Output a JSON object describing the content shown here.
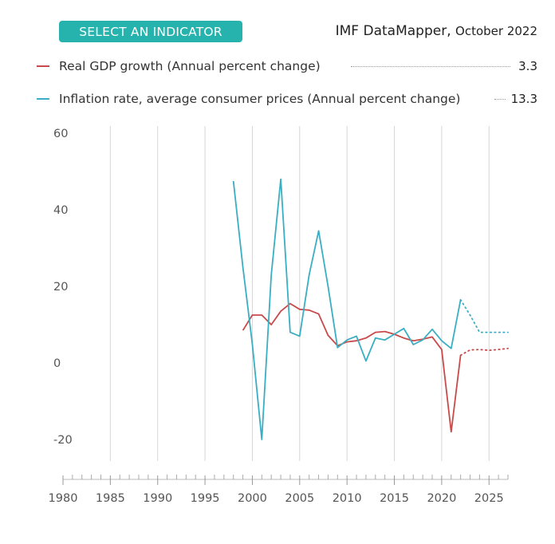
{
  "header": {
    "select_label": "SELECT AN INDICATOR",
    "source_name": "IMF DataMapper,",
    "source_date": "October 2022"
  },
  "legend": [
    {
      "label": "Real GDP growth (Annual percent change)",
      "value": "3.3",
      "color": "#c94a4a"
    },
    {
      "label": "Inflation rate, average consumer prices (Annual percent change)",
      "value": "13.3",
      "color": "#3aaec2"
    }
  ],
  "chart_data": {
    "type": "line",
    "title": "",
    "xlabel": "",
    "ylabel": "",
    "xlim": [
      1980,
      2027
    ],
    "ylim": [
      -20,
      60
    ],
    "x_ticks": [
      1980,
      1985,
      1990,
      1995,
      2000,
      2005,
      2010,
      2015,
      2020,
      2025
    ],
    "y_ticks": [
      -20,
      0,
      20,
      40,
      60
    ],
    "x_tick_labels": [
      "1980",
      "1985",
      "1990",
      "1995",
      "2000",
      "2005",
      "2010",
      "2015",
      "2020",
      "2025"
    ],
    "y_tick_labels": [
      "-20",
      "0",
      "20",
      "40",
      "60"
    ],
    "grid": "vertical",
    "projection_start": 2022,
    "series": [
      {
        "name": "Real GDP growth (Annual percent change)",
        "color": "#c94a4a",
        "x": [
          1999,
          2000,
          2001,
          2002,
          2003,
          2004,
          2005,
          2006,
          2007,
          2008,
          2009,
          2010,
          2011,
          2012,
          2013,
          2014,
          2015,
          2016,
          2017,
          2018,
          2019,
          2020,
          2021,
          2022,
          2023,
          2024,
          2025,
          2026,
          2027
        ],
        "values": [
          8.5,
          12.5,
          12.5,
          10,
          13.5,
          15.5,
          14,
          13.8,
          12.8,
          7.2,
          4.5,
          5.5,
          5.8,
          6.5,
          8,
          8.2,
          7.5,
          6.5,
          5.8,
          6.2,
          6.8,
          3.5,
          -18,
          2,
          3.4,
          3.5,
          3.3,
          3.5,
          3.8
        ]
      },
      {
        "name": "Inflation rate, average consumer prices (Annual percent change)",
        "color": "#3aaec2",
        "x": [
          1998,
          1999,
          2000,
          2001,
          2002,
          2003,
          2004,
          2005,
          2006,
          2007,
          2008,
          2009,
          2010,
          2011,
          2012,
          2013,
          2014,
          2015,
          2016,
          2017,
          2018,
          2019,
          2020,
          2021,
          2022,
          2023,
          2024,
          2025,
          2026,
          2027
        ],
        "values": [
          47.5,
          25,
          5,
          -20,
          23,
          48,
          8,
          7,
          23,
          34.5,
          20,
          4,
          6,
          7,
          0.5,
          6.5,
          6,
          7.5,
          9,
          4.8,
          6,
          8.8,
          5.8,
          3.8,
          16.5,
          12.5,
          8,
          8,
          8,
          8
        ]
      }
    ]
  }
}
